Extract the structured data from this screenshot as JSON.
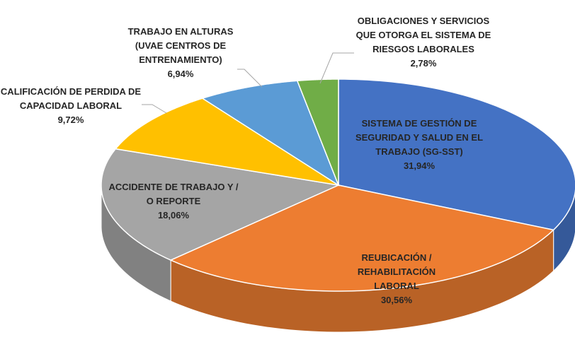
{
  "chart_data": {
    "type": "pie",
    "categories": [
      "SISTEMA DE GESTIÓN DE SEGURIDAD Y SALUD EN EL TRABAJO (SG-SST)",
      "REUBICACIÓN / REHABILITACIÓN LABORAL",
      "ACCIDENTE DE TRABAJO Y / O REPORTE",
      "CALIFICACIÓN DE PERDIDA DE CAPACIDAD LABORAL",
      "TRABAJO EN ALTURAS (UVAE CENTROS DE ENTRENAMIENTO)",
      "OBLIGACIONES Y SERVICIOS QUE OTORGA EL SISTEMA DE RIESGOS LABORALES"
    ],
    "values": [
      31.94,
      30.56,
      18.06,
      9.72,
      6.94,
      2.78
    ],
    "value_labels": [
      "31,94%",
      "30,56%",
      "18,06%",
      "9,72%",
      "6,94%",
      "2,78%"
    ],
    "colors": [
      "#4472c4",
      "#ed7d31",
      "#a5a5a5",
      "#ffc000",
      "#5b9bd5",
      "#70ad47"
    ]
  }
}
